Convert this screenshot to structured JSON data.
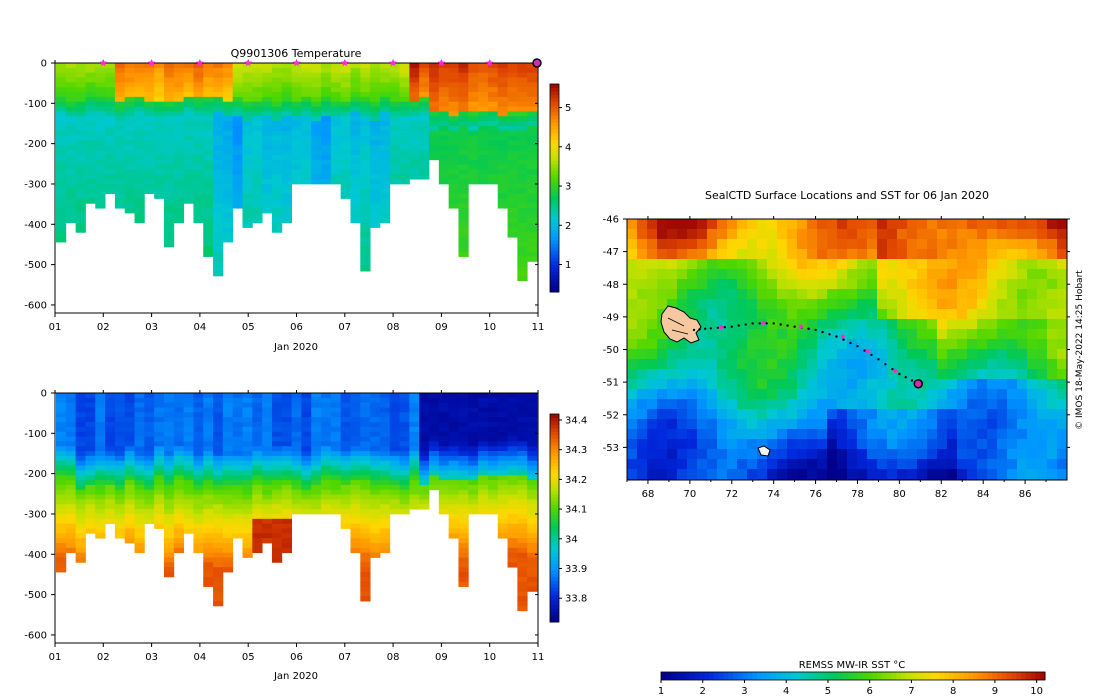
{
  "chart_data": [
    {
      "type": "heatmap",
      "id": "temperature-section",
      "title": "Q9901306  Temperature",
      "xlabel": "Jan 2020",
      "x_ticks": [
        "01",
        "02",
        "03",
        "04",
        "05",
        "06",
        "07",
        "08",
        "09",
        "10",
        "11"
      ],
      "xlim": [
        1,
        11
      ],
      "ylim": [
        -620,
        0
      ],
      "y_ticks": [
        0,
        -100,
        -200,
        -300,
        -400,
        -500,
        -600
      ],
      "colorbar": {
        "min": 0.3,
        "max": 5.6,
        "ticks": [
          1,
          2,
          3,
          4,
          5
        ]
      },
      "surface_markers_days": [
        2,
        3,
        4,
        5,
        6,
        7,
        8,
        9,
        10
      ],
      "current_marker_day": 11,
      "profile_bottom_depths": [
        -435,
        -390,
        -410,
        -340,
        -360,
        -320,
        -350,
        -370,
        -390,
        -320,
        -330,
        -450,
        -390,
        -340,
        -390,
        -470,
        -520,
        -440,
        -350,
        -400,
        -390,
        -370,
        -410,
        -390,
        -300,
        -300,
        -300,
        -300,
        -300,
        -330,
        -390,
        -510,
        -400,
        -390,
        -300,
        -290,
        -280,
        -280,
        -230,
        -300,
        -350,
        -470,
        -300,
        -300,
        -290,
        -360,
        -430,
        -530,
        -490
      ]
    },
    {
      "type": "heatmap",
      "id": "salinity-section",
      "title": "",
      "xlabel": "Jan 2020",
      "x_ticks": [
        "01",
        "02",
        "03",
        "04",
        "05",
        "06",
        "07",
        "08",
        "09",
        "10",
        "11"
      ],
      "xlim": [
        1,
        11
      ],
      "ylim": [
        -620,
        0
      ],
      "y_ticks": [
        0,
        -100,
        -200,
        -300,
        -400,
        -500,
        -600
      ],
      "colorbar": {
        "min": 33.72,
        "max": 34.42,
        "ticks": [
          33.8,
          33.9,
          34,
          34.1,
          34.2,
          34.3,
          34.4
        ]
      }
    },
    {
      "type": "heatmap",
      "id": "sst-map",
      "title": "SealCTD Surface Locations and SST for 06 Jan 2020",
      "x_ticks": [
        68,
        70,
        72,
        74,
        76,
        78,
        80,
        82,
        84,
        86
      ],
      "xlim": [
        67,
        88
      ],
      "y_ticks": [
        -46,
        -47,
        -48,
        -49,
        -50,
        -51,
        -52,
        -53
      ],
      "ylim": [
        -54,
        -46
      ],
      "colorbar_label": "REMSS MW-IR SST °C",
      "colorbar": {
        "min": 1,
        "max": 10.2,
        "ticks": [
          1,
          2,
          3,
          4,
          5,
          6,
          7,
          8,
          9,
          10
        ]
      },
      "track": [
        [
          70.2,
          -49.4
        ],
        [
          71,
          -49.35
        ],
        [
          72,
          -49.3
        ],
        [
          73,
          -49.2
        ],
        [
          74,
          -49.2
        ],
        [
          75,
          -49.3
        ],
        [
          76,
          -49.4
        ],
        [
          77,
          -49.6
        ],
        [
          78,
          -49.9
        ],
        [
          79,
          -50.3
        ],
        [
          80,
          -50.75
        ],
        [
          80.9,
          -51.05
        ]
      ],
      "track_markers": [
        [
          71.5,
          -49.32
        ],
        [
          73.5,
          -49.18
        ],
        [
          75.3,
          -49.3
        ],
        [
          77.3,
          -49.6
        ],
        [
          78.5,
          -50.05
        ],
        [
          79.8,
          -50.65
        ]
      ],
      "current_position": [
        80.9,
        -51.05
      ],
      "credit": "© IMOS 18-May-2022 14:25 Hobart"
    }
  ]
}
